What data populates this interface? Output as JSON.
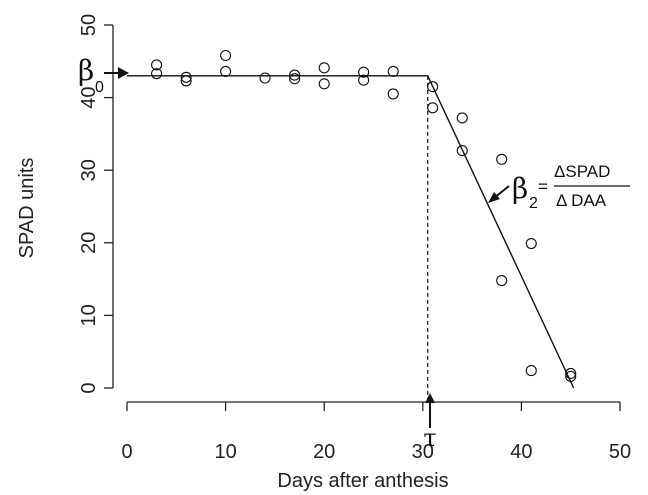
{
  "chart_data": {
    "type": "scatter",
    "xlabel": "Days after anthesis",
    "ylabel": "SPAD units",
    "xlim": [
      0,
      50
    ],
    "ylim": [
      0,
      50
    ],
    "xticks": [
      "0",
      "10",
      "20",
      "30",
      "40",
      "50"
    ],
    "yticks": [
      "0",
      "10",
      "20",
      "30",
      "40",
      "50"
    ],
    "grid": false,
    "points": [
      {
        "x": 3,
        "y": 44.5
      },
      {
        "x": 3,
        "y": 43.3
      },
      {
        "x": 6,
        "y": 42.8
      },
      {
        "x": 6,
        "y": 42.3
      },
      {
        "x": 10,
        "y": 45.8
      },
      {
        "x": 10,
        "y": 43.6
      },
      {
        "x": 14,
        "y": 42.7
      },
      {
        "x": 17,
        "y": 43.1
      },
      {
        "x": 17,
        "y": 42.6
      },
      {
        "x": 20,
        "y": 44.1
      },
      {
        "x": 20,
        "y": 41.9
      },
      {
        "x": 24,
        "y": 43.5
      },
      {
        "x": 24,
        "y": 42.4
      },
      {
        "x": 27,
        "y": 43.6
      },
      {
        "x": 27,
        "y": 40.5
      },
      {
        "x": 31,
        "y": 41.5
      },
      {
        "x": 31,
        "y": 38.6
      },
      {
        "x": 34,
        "y": 37.2
      },
      {
        "x": 34,
        "y": 32.7
      },
      {
        "x": 38,
        "y": 31.5
      },
      {
        "x": 38,
        "y": 14.8
      },
      {
        "x": 41,
        "y": 19.9
      },
      {
        "x": 41,
        "y": 2.4
      },
      {
        "x": 45,
        "y": 2.0
      },
      {
        "x": 45,
        "y": 1.6
      }
    ],
    "fit_line": [
      {
        "x": 0,
        "y": 43
      },
      {
        "x": 30.5,
        "y": 43
      },
      {
        "x": 45.3,
        "y": 0
      }
    ],
    "breakpoint_x": 30.5,
    "annotations": {
      "beta0": "β",
      "beta0_sub": "0",
      "beta2": "β",
      "beta2_sub": "2",
      "equals": "=",
      "frac_num": "ΔSPAD",
      "frac_den": "Δ DAA",
      "tau": "τ"
    }
  }
}
